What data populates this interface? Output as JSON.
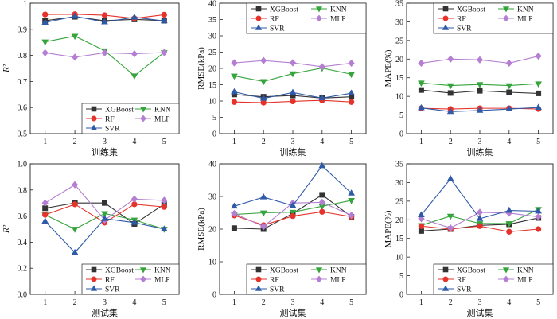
{
  "chart_data": [
    {
      "type": "line",
      "x": [
        1,
        2,
        3,
        4,
        5
      ],
      "xlim": [
        0.5,
        5.5
      ],
      "ylim": [
        0.5,
        1.0
      ],
      "yticks": [
        "0.5",
        "0.6",
        "0.7",
        "0.8",
        "0.9",
        "1"
      ],
      "xlabel": "训练集",
      "ylabel": "R²",
      "legend": "lower-right",
      "grid": false,
      "series": [
        {
          "name": "XGBoost",
          "values": [
            0.933,
            0.948,
            0.933,
            0.938,
            0.933
          ]
        },
        {
          "name": "KNN",
          "values": [
            0.852,
            0.874,
            0.818,
            0.722,
            0.811
          ]
        },
        {
          "name": "RF",
          "values": [
            0.957,
            0.958,
            0.954,
            0.942,
            0.956
          ]
        },
        {
          "name": "MLP",
          "values": [
            0.81,
            0.793,
            0.81,
            0.806,
            0.811
          ]
        },
        {
          "name": "SVR",
          "values": [
            0.926,
            0.95,
            0.928,
            0.946,
            0.932
          ]
        }
      ]
    },
    {
      "type": "line",
      "x": [
        1,
        2,
        3,
        4,
        5
      ],
      "xlim": [
        0.5,
        5.5
      ],
      "ylim": [
        0,
        40
      ],
      "yticks": [
        "0",
        "5",
        "10",
        "15",
        "20",
        "25",
        "30",
        "35",
        "40"
      ],
      "xlabel": "训练集",
      "ylabel": "RMSE(kPa)",
      "legend": "upper-right",
      "grid": false,
      "series": [
        {
          "name": "XGBoost",
          "values": [
            12.0,
            11.3,
            11.7,
            10.9,
            11.3
          ]
        },
        {
          "name": "KNN",
          "values": [
            17.7,
            16.0,
            18.4,
            20.1,
            18.2
          ]
        },
        {
          "name": "RF",
          "values": [
            9.7,
            9.5,
            9.9,
            10.2,
            9.7
          ]
        },
        {
          "name": "MLP",
          "values": [
            21.7,
            22.4,
            21.7,
            20.5,
            21.6
          ]
        },
        {
          "name": "SVR",
          "values": [
            12.8,
            10.8,
            12.6,
            10.9,
            12.4
          ]
        }
      ]
    },
    {
      "type": "line",
      "x": [
        1,
        2,
        3,
        4,
        5
      ],
      "xlim": [
        0.5,
        5.5
      ],
      "ylim": [
        0,
        35
      ],
      "yticks": [
        "0",
        "5",
        "10",
        "15",
        "20",
        "25",
        "30",
        "35"
      ],
      "xlabel": "训练集",
      "ylabel": "MAPE(%)",
      "legend": "upper-right",
      "grid": false,
      "series": [
        {
          "name": "XGBoost",
          "values": [
            11.7,
            10.9,
            11.5,
            11.1,
            10.8
          ]
        },
        {
          "name": "KNN",
          "values": [
            13.6,
            12.9,
            13.2,
            12.9,
            13.4
          ]
        },
        {
          "name": "RF",
          "values": [
            6.8,
            6.6,
            6.8,
            6.8,
            6.6
          ]
        },
        {
          "name": "MLP",
          "values": [
            18.9,
            20.0,
            19.8,
            18.9,
            20.8
          ]
        },
        {
          "name": "SVR",
          "values": [
            6.9,
            5.9,
            6.2,
            6.6,
            7.0
          ]
        }
      ]
    },
    {
      "type": "line",
      "x": [
        1,
        2,
        3,
        4,
        5
      ],
      "xlim": [
        0.5,
        5.5
      ],
      "ylim": [
        0,
        1.0
      ],
      "yticks": [
        "0.0",
        "0.2",
        "0.4",
        "0.6",
        "0.8",
        "1.0"
      ],
      "xlabel": "测试集",
      "ylabel": "R²",
      "legend": "lower-right",
      "grid": false,
      "series": [
        {
          "name": "XGBoost",
          "values": [
            0.66,
            0.7,
            0.7,
            0.54,
            0.69
          ]
        },
        {
          "name": "KNN",
          "values": [
            0.61,
            0.5,
            0.62,
            0.57,
            0.5
          ]
        },
        {
          "name": "RF",
          "values": [
            0.61,
            0.69,
            0.55,
            0.69,
            0.67
          ]
        },
        {
          "name": "MLP",
          "values": [
            0.7,
            0.84,
            0.57,
            0.73,
            0.72
          ]
        },
        {
          "name": "SVR",
          "values": [
            0.56,
            0.32,
            0.58,
            0.55,
            0.5
          ]
        }
      ]
    },
    {
      "type": "line",
      "x": [
        1,
        2,
        3,
        4,
        5
      ],
      "xlim": [
        0.5,
        5.5
      ],
      "ylim": [
        0,
        40
      ],
      "yticks": [
        "0",
        "10",
        "20",
        "30",
        "40"
      ],
      "xlabel": "测试集",
      "ylabel": "RMSE(kPa)",
      "legend": "lower-right",
      "grid": false,
      "series": [
        {
          "name": "XGBoost",
          "values": [
            20.3,
            20.0,
            24.8,
            30.5,
            23.8
          ]
        },
        {
          "name": "KNN",
          "values": [
            24.5,
            25.0,
            25.2,
            27.0,
            28.8
          ]
        },
        {
          "name": "RF",
          "values": [
            24.2,
            21.2,
            24.0,
            25.3,
            23.8
          ]
        },
        {
          "name": "MLP",
          "values": [
            24.8,
            20.8,
            28.0,
            28.2,
            24.2
          ]
        },
        {
          "name": "SVR",
          "values": [
            27.0,
            29.8,
            27.2,
            39.4,
            31.0
          ]
        }
      ]
    },
    {
      "type": "line",
      "x": [
        1,
        2,
        3,
        4,
        5
      ],
      "xlim": [
        0.5,
        5.5
      ],
      "ylim": [
        0,
        35
      ],
      "yticks": [
        "0",
        "5",
        "10",
        "15",
        "20",
        "25",
        "30",
        "35"
      ],
      "xlabel": "测试集",
      "ylabel": "MAPE(%)",
      "legend": "lower-right",
      "grid": false,
      "series": [
        {
          "name": "XGBoost",
          "values": [
            17.0,
            17.5,
            18.5,
            18.8,
            20.5
          ]
        },
        {
          "name": "KNN",
          "values": [
            18.5,
            21.0,
            19.0,
            19.0,
            22.8
          ]
        },
        {
          "name": "RF",
          "values": [
            18.3,
            17.5,
            18.3,
            16.8,
            17.5
          ]
        },
        {
          "name": "MLP",
          "values": [
            20.3,
            17.8,
            22.0,
            21.8,
            20.8
          ]
        },
        {
          "name": "SVR",
          "values": [
            21.3,
            31.0,
            20.3,
            22.5,
            22.3
          ]
        }
      ]
    }
  ],
  "series_styles": {
    "XGBoost": {
      "color": "#333333",
      "marker": "square"
    },
    "KNN": {
      "color": "#35a43c",
      "marker": "triangle-down"
    },
    "RF": {
      "color": "#e5332b",
      "marker": "circle"
    },
    "MLP": {
      "color": "#b47fd2",
      "marker": "diamond"
    },
    "SVR": {
      "color": "#2f5aa8",
      "marker": "triangle-up"
    }
  }
}
